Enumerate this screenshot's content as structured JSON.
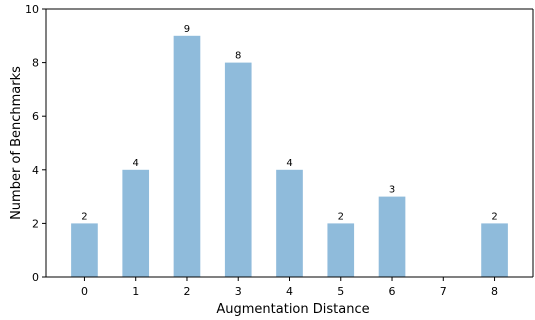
{
  "chart_data": {
    "type": "bar",
    "title": "",
    "xlabel": "Augmentation Distance",
    "ylabel": "Number of Benchmarks",
    "categories": [
      "0",
      "1",
      "2",
      "3",
      "4",
      "5",
      "6",
      "7",
      "8"
    ],
    "values": [
      2,
      4,
      9,
      8,
      4,
      2,
      3,
      0,
      2
    ],
    "data_labels": [
      "2",
      "4",
      "9",
      "8",
      "4",
      "2",
      "3",
      "",
      "2"
    ],
    "ylim": [
      0,
      10
    ],
    "yticks": [
      0,
      2,
      4,
      6,
      8,
      10
    ],
    "grid": false,
    "legend": "none",
    "bar_color": "#8fbbdb",
    "axis_color": "#000000"
  }
}
